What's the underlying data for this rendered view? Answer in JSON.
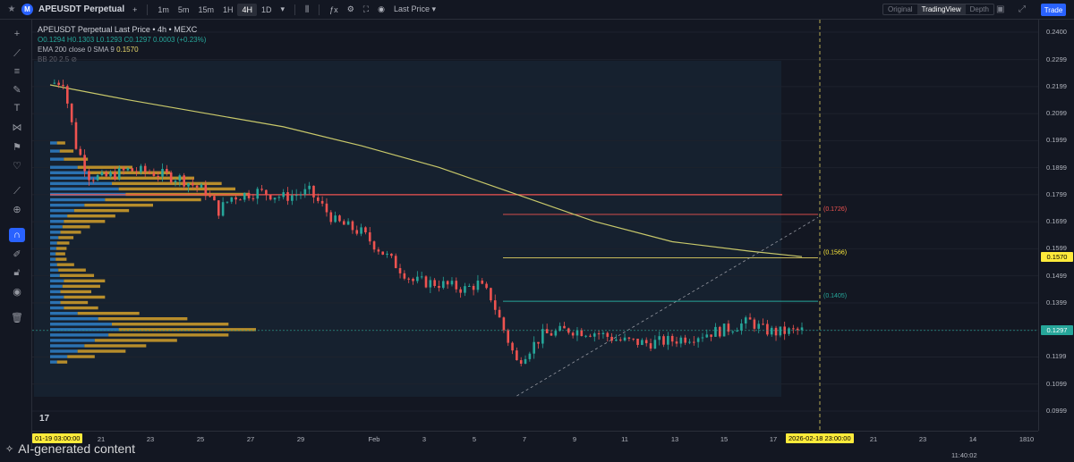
{
  "header": {
    "symbol": "APEUSDT Perpetual",
    "timeframes": [
      "1m",
      "5m",
      "15m",
      "1H",
      "4H",
      "1D"
    ],
    "active_timeframe": "4H",
    "price_type": "Last Price",
    "views": [
      "Original",
      "TradingView",
      "Depth"
    ],
    "active_view": "TradingView",
    "trade_label": "Trade"
  },
  "legend": {
    "title": "APEUSDT Perpetual Last Price • 4h • MEXC",
    "ohlc": "O0.1294 H0.1303 L0.1293 C0.1297 0.0003 (+0.23%)",
    "ema_label": "EMA 200 close 0 SMA 9",
    "ema_value": "0.1570",
    "bb_label": "BB 20 2.5"
  },
  "price_scale": {
    "labels": [
      "0.2400",
      "0.2299",
      "0.2199",
      "0.2099",
      "0.1999",
      "0.1899",
      "0.1799",
      "0.1699",
      "0.1599",
      "0.1499",
      "0.1399",
      "0.1299",
      "0.1199",
      "0.1099",
      "0.0999"
    ],
    "ema_tag": "0.1570",
    "last_tag": "0.1297",
    "ema_color": "#ffeb3b",
    "last_color": "#26a69a"
  },
  "time_scale": {
    "labels": [
      "21",
      "23",
      "25",
      "27",
      "29",
      "Feb",
      "3",
      "5",
      "7",
      "9",
      "11",
      "13",
      "15",
      "17",
      "21",
      "23",
      "14",
      "18",
      "10"
    ],
    "left_tag": "01-19   03:00:00",
    "right_tag": "2026-02-18   23:00:00"
  },
  "annotations": {
    "level_high": "(0.1726)",
    "level_mid": "(0.1566)",
    "level_low": "(0.1405)"
  },
  "clock": "11:40:02",
  "watermark": "AI-generated content",
  "colors": {
    "up": "#26a69a",
    "down": "#ef5350",
    "ema": "#c8c86a",
    "volume_profile_up": "#2f80c9",
    "volume_profile_down": "#d4a02a"
  },
  "icons": [
    "crosshair-icon",
    "trend-line-icon",
    "fib-icon",
    "brush-icon",
    "text-icon",
    "pattern-icon",
    "forecast-icon",
    "heart-icon",
    "ruler-icon",
    "zoom-icon",
    "magnet-icon",
    "lock-icon",
    "eye-icon",
    "trash-icon"
  ],
  "chart_data": {
    "type": "candlestick",
    "symbol": "APEUSDT Perpetual",
    "interval": "4h",
    "ylim": [
      0.0999,
      0.24
    ],
    "x_range": [
      "01-19",
      "02-18"
    ],
    "ema200_last": 0.157,
    "last_close": 0.1297,
    "horizontal_levels": [
      0.1799,
      0.1726,
      0.1566,
      0.1405
    ],
    "close_path": [
      {
        "day": 19.0,
        "close": 0.221
      },
      {
        "day": 19.5,
        "close": 0.222
      },
      {
        "day": 20.0,
        "close": 0.198
      },
      {
        "day": 20.5,
        "close": 0.187
      },
      {
        "day": 21.0,
        "close": 0.186
      },
      {
        "day": 22.0,
        "close": 0.189
      },
      {
        "day": 23.0,
        "close": 0.188
      },
      {
        "day": 24.0,
        "close": 0.186
      },
      {
        "day": 25.0,
        "close": 0.181
      },
      {
        "day": 25.5,
        "close": 0.174
      },
      {
        "day": 26.0,
        "close": 0.179
      },
      {
        "day": 27.0,
        "close": 0.181
      },
      {
        "day": 28.0,
        "close": 0.179
      },
      {
        "day": 29.0,
        "close": 0.181
      },
      {
        "day": 30.0,
        "close": 0.17
      },
      {
        "day": 31.0,
        "close": 0.166
      },
      {
        "day": 32.0,
        "close": 0.157
      },
      {
        "day": 33.0,
        "close": 0.148
      },
      {
        "day": 34.0,
        "close": 0.147
      },
      {
        "day": 35.0,
        "close": 0.145
      },
      {
        "day": 35.5,
        "close": 0.147
      },
      {
        "day": 36.0,
        "close": 0.142
      },
      {
        "day": 36.5,
        "close": 0.13
      },
      {
        "day": 37.0,
        "close": 0.118
      },
      {
        "day": 38.0,
        "close": 0.128
      },
      {
        "day": 39.0,
        "close": 0.13
      },
      {
        "day": 40.0,
        "close": 0.129
      },
      {
        "day": 41.0,
        "close": 0.126
      },
      {
        "day": 42.0,
        "close": 0.125
      },
      {
        "day": 43.0,
        "close": 0.126
      },
      {
        "day": 44.0,
        "close": 0.128
      },
      {
        "day": 45.0,
        "close": 0.13
      },
      {
        "day": 46.0,
        "close": 0.133
      },
      {
        "day": 46.5,
        "close": 0.13
      },
      {
        "day": 47.0,
        "close": 0.129
      },
      {
        "day": 48.0,
        "close": 0.1297
      }
    ],
    "ema200": [
      {
        "day": 19.0,
        "value": 0.2205
      },
      {
        "day": 22.0,
        "value": 0.215
      },
      {
        "day": 25.0,
        "value": 0.21
      },
      {
        "day": 28.0,
        "value": 0.205
      },
      {
        "day": 31.0,
        "value": 0.198
      },
      {
        "day": 34.0,
        "value": 0.19
      },
      {
        "day": 37.0,
        "value": 0.18
      },
      {
        "day": 40.0,
        "value": 0.17
      },
      {
        "day": 43.0,
        "value": 0.1625
      },
      {
        "day": 46.0,
        "value": 0.159
      },
      {
        "day": 48.0,
        "value": 0.157
      }
    ],
    "volume_profile": [
      {
        "price": 0.199,
        "up": 10,
        "down": 12
      },
      {
        "price": 0.196,
        "up": 14,
        "down": 20
      },
      {
        "price": 0.193,
        "up": 20,
        "down": 35
      },
      {
        "price": 0.19,
        "up": 40,
        "down": 80
      },
      {
        "price": 0.188,
        "up": 55,
        "down": 120
      },
      {
        "price": 0.186,
        "up": 70,
        "down": 140
      },
      {
        "price": 0.184,
        "up": 90,
        "down": 160
      },
      {
        "price": 0.182,
        "up": 100,
        "down": 170
      },
      {
        "price": 0.18,
        "up": 110,
        "down": 180
      },
      {
        "price": 0.178,
        "up": 80,
        "down": 140
      },
      {
        "price": 0.176,
        "up": 50,
        "down": 100
      },
      {
        "price": 0.174,
        "up": 35,
        "down": 80
      },
      {
        "price": 0.172,
        "up": 25,
        "down": 70
      },
      {
        "price": 0.17,
        "up": 20,
        "down": 60
      },
      {
        "price": 0.168,
        "up": 18,
        "down": 40
      },
      {
        "price": 0.166,
        "up": 15,
        "down": 30
      },
      {
        "price": 0.164,
        "up": 12,
        "down": 22
      },
      {
        "price": 0.162,
        "up": 10,
        "down": 18
      },
      {
        "price": 0.16,
        "up": 9,
        "down": 15
      },
      {
        "price": 0.158,
        "up": 8,
        "down": 14
      },
      {
        "price": 0.156,
        "up": 8,
        "down": 16
      },
      {
        "price": 0.154,
        "up": 10,
        "down": 25
      },
      {
        "price": 0.152,
        "up": 12,
        "down": 40
      },
      {
        "price": 0.15,
        "up": 14,
        "down": 50
      },
      {
        "price": 0.148,
        "up": 20,
        "down": 60
      },
      {
        "price": 0.146,
        "up": 18,
        "down": 55
      },
      {
        "price": 0.144,
        "up": 15,
        "down": 45
      },
      {
        "price": 0.142,
        "up": 20,
        "down": 60
      },
      {
        "price": 0.14,
        "up": 15,
        "down": 40
      },
      {
        "price": 0.138,
        "up": 20,
        "down": 50
      },
      {
        "price": 0.136,
        "up": 40,
        "down": 90
      },
      {
        "price": 0.134,
        "up": 70,
        "down": 130
      },
      {
        "price": 0.132,
        "up": 90,
        "down": 170
      },
      {
        "price": 0.13,
        "up": 100,
        "down": 200
      },
      {
        "price": 0.128,
        "up": 85,
        "down": 175
      },
      {
        "price": 0.126,
        "up": 65,
        "down": 120
      },
      {
        "price": 0.124,
        "up": 50,
        "down": 90
      },
      {
        "price": 0.122,
        "up": 40,
        "down": 70
      },
      {
        "price": 0.12,
        "up": 25,
        "down": 40
      },
      {
        "price": 0.118,
        "up": 10,
        "down": 15
      }
    ]
  }
}
